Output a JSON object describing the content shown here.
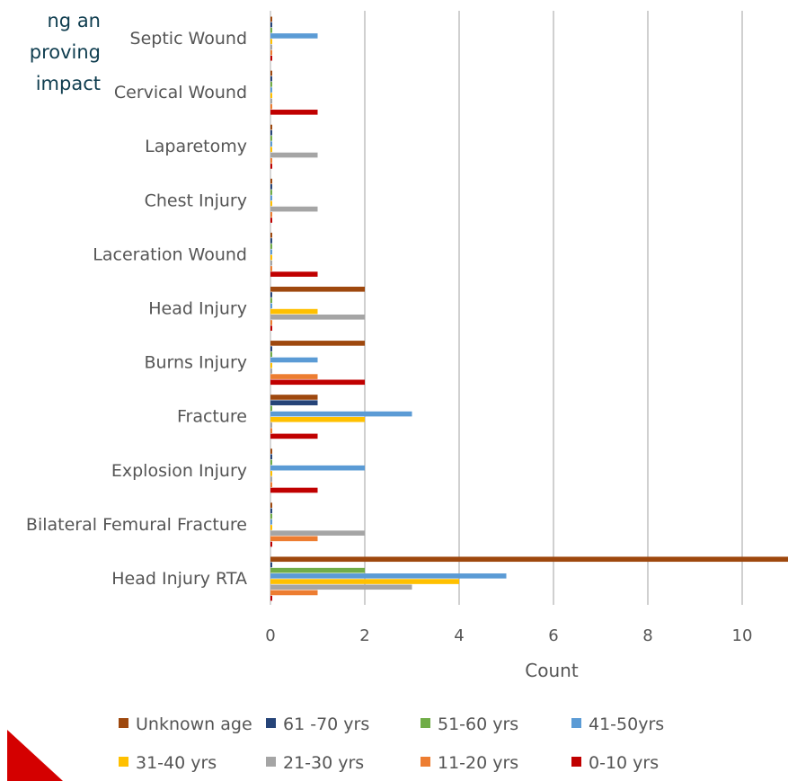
{
  "background_text": {
    "lines": [
      "ng   an",
      "proving",
      "impact"
    ]
  },
  "chart_data": {
    "type": "bar",
    "orientation": "horizontal",
    "xlabel": "Count",
    "xlim": [
      0,
      11
    ],
    "xticks": [
      0,
      2,
      4,
      6,
      8,
      10
    ],
    "grid": true,
    "legend_position": "bottom",
    "categories": [
      "Head Injury RTA",
      "Bilateral Femural Fracture",
      "Explosion Injury",
      "Fracture",
      "Burns Injury",
      "Head Injury",
      "Laceration Wound",
      "Chest Injury",
      "Laparetomy",
      "Cervical Wound",
      "Septic Wound"
    ],
    "series": [
      {
        "name": "Unknown age",
        "color": "#9e480e",
        "values": [
          11,
          0,
          0,
          1,
          2,
          2,
          0,
          0,
          0,
          0,
          0
        ]
      },
      {
        "name": "61 -70 yrs",
        "color": "#264478",
        "values": [
          0,
          0,
          0,
          1,
          0,
          0,
          0,
          0,
          0,
          0,
          0
        ]
      },
      {
        "name": "51-60 yrs",
        "color": "#70ad47",
        "values": [
          2,
          0,
          0,
          0,
          0,
          0,
          0,
          0,
          0,
          0,
          0
        ]
      },
      {
        "name": "41-50yrs",
        "color": "#5b9bd5",
        "values": [
          5,
          0,
          2,
          3,
          1,
          0,
          0,
          0,
          0,
          0,
          1
        ]
      },
      {
        "name": "31-40 yrs",
        "color": "#ffc000",
        "values": [
          4,
          0,
          0,
          2,
          0,
          1,
          0,
          0,
          0,
          0,
          0
        ]
      },
      {
        "name": "21-30 yrs",
        "color": "#a5a5a5",
        "values": [
          3,
          2,
          0,
          0,
          0,
          2,
          0,
          1,
          1,
          0,
          0
        ]
      },
      {
        "name": "11-20 yrs",
        "color": "#ed7d31",
        "values": [
          1,
          1,
          0,
          0,
          1,
          0,
          0,
          0,
          0,
          0,
          0
        ]
      },
      {
        "name": "0-10 yrs",
        "color": "#c00000",
        "values": [
          0,
          0,
          1,
          1,
          2,
          0,
          1,
          0,
          0,
          1,
          0
        ]
      }
    ]
  }
}
